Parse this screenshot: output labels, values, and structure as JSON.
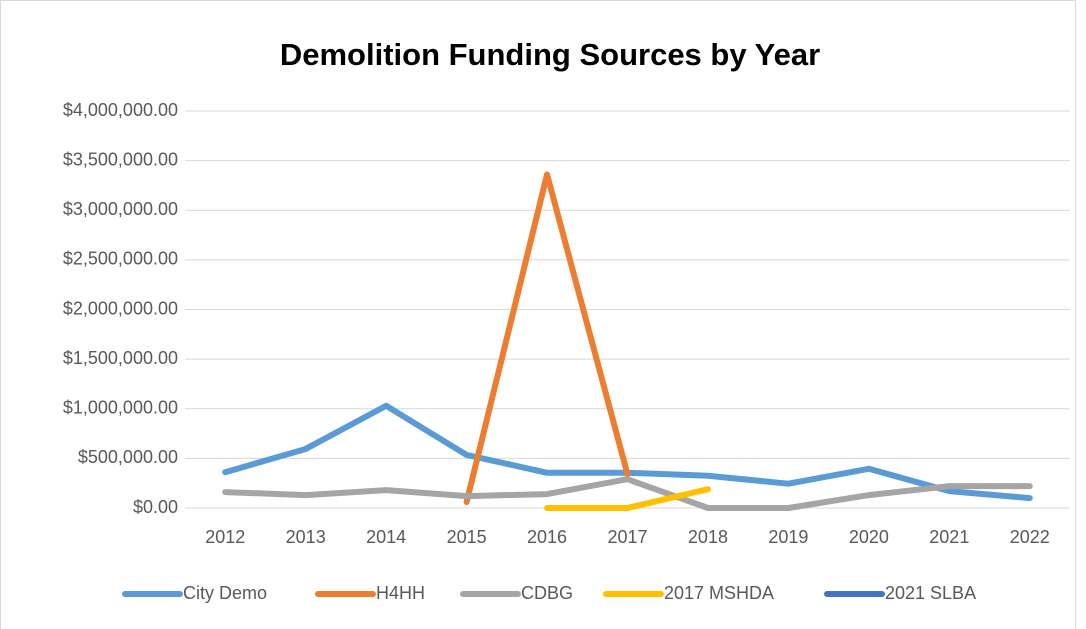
{
  "chart_data": {
    "type": "line",
    "title": "Demolition Funding Sources by Year",
    "categories": [
      "2012",
      "2013",
      "2014",
      "2015",
      "2016",
      "2017",
      "2018",
      "2019",
      "2020",
      "2021",
      "2022"
    ],
    "series": [
      {
        "name": "City Demo",
        "color": "#5b9bd5",
        "values": [
          360000,
          595000,
          1030000,
          535000,
          355000,
          355000,
          325000,
          245000,
          395000,
          170000,
          100000
        ]
      },
      {
        "name": "H4HH",
        "color": "#ed7d31",
        "values": [
          null,
          null,
          null,
          60000,
          3360000,
          340000,
          null,
          null,
          null,
          null,
          null
        ]
      },
      {
        "name": "CDBG",
        "color": "#a5a5a5",
        "values": [
          160000,
          130000,
          180000,
          120000,
          140000,
          290000,
          0,
          0,
          130000,
          220000,
          220000
        ]
      },
      {
        "name": "2017 MSHDA",
        "color": "#ffc000",
        "values": [
          null,
          null,
          null,
          null,
          0,
          0,
          190000,
          null,
          null,
          null,
          null
        ]
      },
      {
        "name": "2021 SLBA",
        "color": "#4472c4",
        "values": [
          null,
          null,
          null,
          null,
          null,
          null,
          null,
          null,
          null,
          null,
          null
        ]
      }
    ],
    "ylim": [
      0,
      4000000
    ],
    "yticks": [
      {
        "value": 0,
        "label": "$0.00"
      },
      {
        "value": 500000,
        "label": "$500,000.00"
      },
      {
        "value": 1000000,
        "label": "$1,000,000.00"
      },
      {
        "value": 1500000,
        "label": "$1,500,000.00"
      },
      {
        "value": 2000000,
        "label": "$2,000,000.00"
      },
      {
        "value": 2500000,
        "label": "$2,500,000.00"
      },
      {
        "value": 3000000,
        "label": "$3,000,000.00"
      },
      {
        "value": 3500000,
        "label": "$3,500,000.00"
      },
      {
        "value": 4000000,
        "label": "$4,000,000.00"
      }
    ],
    "grid": true,
    "legend": "bottom"
  }
}
